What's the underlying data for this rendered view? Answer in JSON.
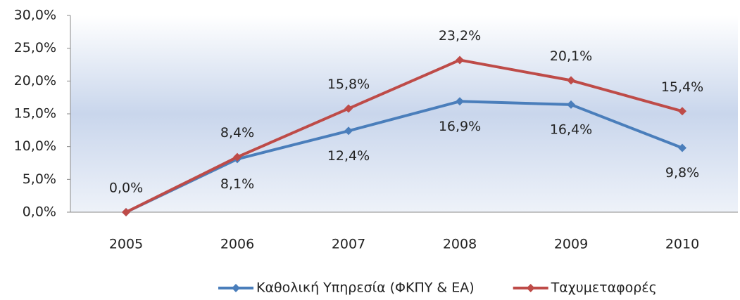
{
  "chart_data": {
    "type": "line",
    "categories": [
      "2005",
      "2006",
      "2007",
      "2008",
      "2009",
      "2010"
    ],
    "series": [
      {
        "name": "Καθολική Υπηρεσία (ΦΚΠΥ & ΕΑ)",
        "color": "#4a7ebb",
        "values": [
          0,
          8.1,
          12.4,
          16.9,
          16.4,
          9.8
        ],
        "value_labels": [
          null,
          "8,1%",
          "12,4%",
          "16,9%",
          "16,4%",
          "9,8%"
        ]
      },
      {
        "name": "Ταχυμεταφορές",
        "color": "#be4b48",
        "values": [
          0,
          8.4,
          15.8,
          23.2,
          20.1,
          15.4
        ],
        "value_labels": [
          "0,0%",
          "8,4%",
          "15,8%",
          "23,2%",
          "20,1%",
          "15,4%"
        ]
      }
    ],
    "ylim": [
      0,
      30
    ],
    "yticks": [
      {
        "value": 0,
        "label": "0,0%"
      },
      {
        "value": 5,
        "label": "5,0%"
      },
      {
        "value": 10,
        "label": "10,0%"
      },
      {
        "value": 15,
        "label": "15,0%"
      },
      {
        "value": 20,
        "label": "20,0%"
      },
      {
        "value": 25,
        "label": "25,0%"
      },
      {
        "value": 30,
        "label": "30,0%"
      }
    ],
    "legend": "bottom"
  }
}
